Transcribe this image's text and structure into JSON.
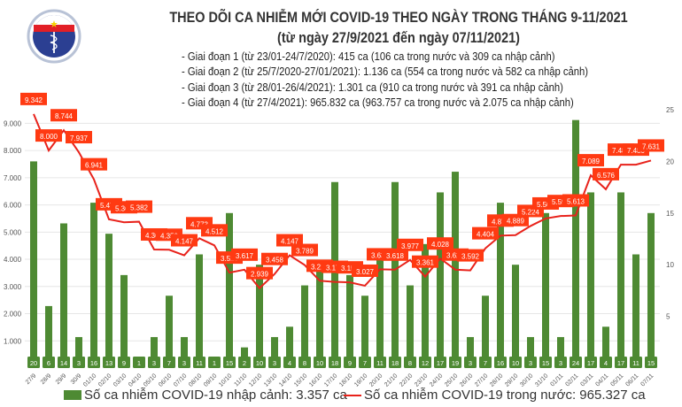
{
  "header": {
    "title": "THEO DÕI CA NHIỄM MỚI COVID-19 THEO NGÀY TRONG THÁNG 9-11/2021",
    "subtitle": "(từ ngày 27/9/2021 đến ngày 07/11/2021)",
    "notes": [
      "- Giai đoạn 1 (từ 23/01-24/7/2020): 415 ca (106 ca trong nước và 309 ca nhập cảnh)",
      "- Giai đoạn 2 (từ 25/7/2020-27/01/2021): 1.136 ca (554 ca trong nước và 582 ca nhập cảnh)",
      "- Giai đoạn 3 (từ 28/01-26/4/2021): 1.301 ca (910 ca trong nước và 391 ca nhập cảnh)",
      "- Giai đoạn 4 (từ 27/4/2021): 965.832 ca (963.757 ca trong nước và 2.075 ca nhập cảnh)"
    ],
    "logo_text": [
      "BỘ Y TẾ",
      "MINISTRY OF HEALTH"
    ]
  },
  "colors": {
    "bar": "#4e8a33",
    "line": "#e8221b",
    "label_bg": "#ff3a12",
    "grid": "#e6e6e6"
  },
  "chart_data": {
    "type": "bar+line",
    "categories": [
      "27/9",
      "28/9",
      "29/9",
      "30/9",
      "01/10",
      "02/10",
      "03/10",
      "04/10",
      "05/10",
      "06/10",
      "07/10",
      "08/10",
      "09/10",
      "10/10",
      "11/10",
      "12/10",
      "13/10",
      "14/10",
      "15/10",
      "16/10",
      "17/10",
      "18/10",
      "19/10",
      "20/10",
      "21/10",
      "22/10",
      "23/10",
      "24/10",
      "25/10",
      "26/10",
      "27/10",
      "28/10",
      "29/10",
      "30/10",
      "31/10",
      "01/11",
      "02/11",
      "03/11",
      "04/11",
      "05/11",
      "06/11",
      "07/11"
    ],
    "series": [
      {
        "name": "Số ca nhiễm COVID-19 nhập cảnh: 3.357 ca",
        "type": "bar",
        "axis": "right",
        "values": [
          20,
          6,
          14,
          3,
          16,
          13,
          9,
          1,
          3,
          7,
          3,
          11,
          1,
          15,
          2,
          10,
          3,
          4,
          8,
          10,
          18,
          9,
          7,
          11,
          18,
          8,
          12,
          17,
          19,
          3,
          7,
          16,
          10,
          3,
          15,
          3,
          24,
          17,
          4,
          17,
          11,
          15
        ]
      },
      {
        "name": "Số ca nhiễm COVID-19 trong nước: 965.327 ca",
        "type": "line",
        "axis": "left",
        "values": [
          9342,
          8000,
          8744,
          7937,
          6941,
          5470,
          5360,
          5382,
          4360,
          4350,
          4147,
          4773,
          4512,
          3510,
          3617,
          2939,
          3458,
          4147,
          3789,
          3210,
          3170,
          3150,
          3027,
          3630,
          3618,
          3977,
          3361,
          4028,
          3620,
          3592,
          4404,
          4870,
          4889,
          5224,
          5500,
          5590,
          5613,
          7089,
          6576,
          7480,
          7480,
          7631
        ]
      }
    ],
    "left_axis": {
      "ticks": [
        "1.000",
        "2.000",
        "3.000",
        "4.000",
        "5.000",
        "6.000",
        "7.000",
        "8.000",
        "9.000"
      ],
      "range": [
        0,
        9500
      ]
    },
    "right_axis": {
      "ticks": [
        "5",
        "10",
        "15",
        "20",
        "25"
      ],
      "range": [
        0,
        25
      ]
    },
    "grid": true,
    "legend_position": "bottom"
  }
}
